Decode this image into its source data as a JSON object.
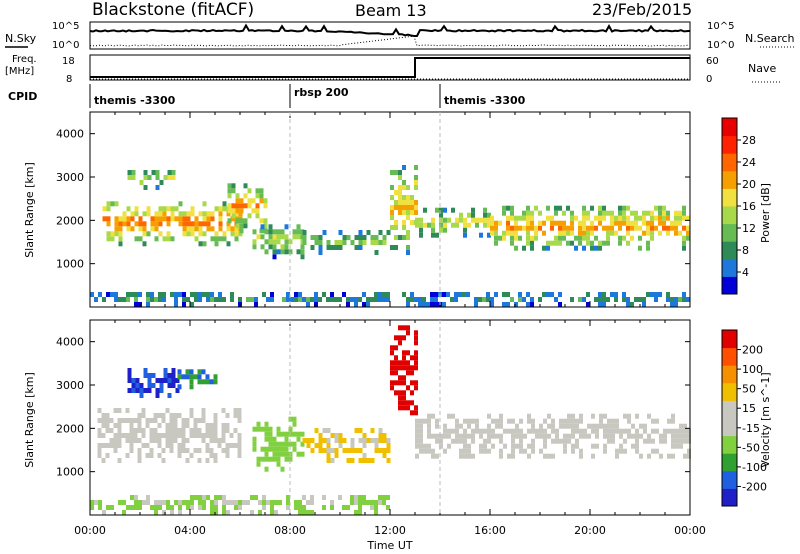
{
  "header": {
    "station": "Blackstone (fitACF)",
    "beam": "Beam 13",
    "date": "23/Feb/2015"
  },
  "noise_panel": {
    "left_label": "N.Sky",
    "right_label": "N.Search",
    "left_ticks": [
      "10^5",
      "10^0"
    ],
    "right_ticks": [
      "10^5",
      "10^0"
    ]
  },
  "freq_panel": {
    "left_label_1": "Freq.",
    "left_label_2": "[MHz]",
    "right_label": "Nave",
    "left_ticks": [
      "18",
      "8"
    ],
    "right_ticks": [
      "60",
      "0"
    ]
  },
  "cpid": {
    "label": "CPID",
    "segments": [
      {
        "name": "themis -3300",
        "start": 0,
        "end": 8
      },
      {
        "name": "rbsp 200",
        "start": 8,
        "end": 14
      },
      {
        "name": "themis -3300",
        "start": 14,
        "end": 24
      }
    ]
  },
  "colors": {
    "power_scale": [
      "#0000d8",
      "#1e78dc",
      "#2e8b57",
      "#66bb55",
      "#a8d94a",
      "#f0e040",
      "#f5a000",
      "#ff6600",
      "#ff2200",
      "#e80000"
    ],
    "velocity_scale": [
      "#2020c8",
      "#2060e0",
      "#30a030",
      "#80d040",
      "#c8c8c0",
      "#c8c8c0",
      "#f0c000",
      "#f59000",
      "#ff5000",
      "#e00000"
    ]
  },
  "chart_data": [
    {
      "type": "heatmap",
      "title": "Power",
      "xlabel": "",
      "ylabel": "Slant Range [km]",
      "xlim": [
        0,
        24
      ],
      "ylim": [
        0,
        4500
      ],
      "yticks": [
        "1000",
        "2000",
        "3000",
        "4000"
      ],
      "colorbar": {
        "label": "Power [dB]",
        "ticks": [
          "28",
          "24",
          "20",
          "16",
          "12",
          "8",
          "4"
        ],
        "range": [
          0,
          30
        ]
      },
      "bands": [
        {
          "t": [
            0.5,
            6
          ],
          "r": [
            1400,
            2400
          ],
          "v": 22
        },
        {
          "t": [
            1.5,
            3.5
          ],
          "r": [
            2700,
            3100
          ],
          "v": 14
        },
        {
          "t": [
            5.5,
            7
          ],
          "r": [
            1700,
            2800
          ],
          "v": 20
        },
        {
          "t": [
            6.5,
            8.5
          ],
          "r": [
            1100,
            1900
          ],
          "v": 14
        },
        {
          "t": [
            8.5,
            12
          ],
          "r": [
            1200,
            1700
          ],
          "v": 12
        },
        {
          "t": [
            12,
            13
          ],
          "r": [
            1200,
            3300
          ],
          "v": 18
        },
        {
          "t": [
            13,
            16
          ],
          "r": [
            1600,
            2200
          ],
          "v": 16
        },
        {
          "t": [
            16,
            24
          ],
          "r": [
            1300,
            2300
          ],
          "v": 20
        },
        {
          "t": [
            0,
            24
          ],
          "r": [
            0,
            300
          ],
          "v": 8
        }
      ]
    },
    {
      "type": "heatmap",
      "title": "Velocity",
      "xlabel": "Time UT",
      "ylabel": "Slant Range [km]",
      "xlim": [
        0,
        24
      ],
      "ylim": [
        0,
        4500
      ],
      "xticks": [
        "00:00",
        "04:00",
        "08:00",
        "12:00",
        "16:00",
        "20:00",
        "00:00"
      ],
      "yticks": [
        "1000",
        "2000",
        "3000",
        "4000"
      ],
      "colorbar": {
        "label": "Velocity [m s^-1]",
        "ticks": [
          "200",
          "100",
          "50",
          "15",
          "-15",
          "-50",
          "-100",
          "-200"
        ],
        "range": [
          -250,
          250
        ]
      },
      "bands": [
        {
          "t": [
            0.3,
            6
          ],
          "r": [
            1200,
            2400
          ],
          "v": 0
        },
        {
          "t": [
            1.5,
            3.5
          ],
          "r": [
            2700,
            3300
          ],
          "v": -200
        },
        {
          "t": [
            3.5,
            5
          ],
          "r": [
            2900,
            3300
          ],
          "v": -150
        },
        {
          "t": [
            6.5,
            8.5
          ],
          "r": [
            1000,
            2200
          ],
          "v": -80
        },
        {
          "t": [
            8.5,
            12
          ],
          "r": [
            1200,
            2000
          ],
          "v": 60
        },
        {
          "t": [
            12,
            13
          ],
          "r": [
            2300,
            4300
          ],
          "v": 220
        },
        {
          "t": [
            13,
            24
          ],
          "r": [
            1300,
            2300
          ],
          "v": 0
        },
        {
          "t": [
            0,
            12
          ],
          "r": [
            0,
            400
          ],
          "v": -60
        }
      ]
    }
  ]
}
